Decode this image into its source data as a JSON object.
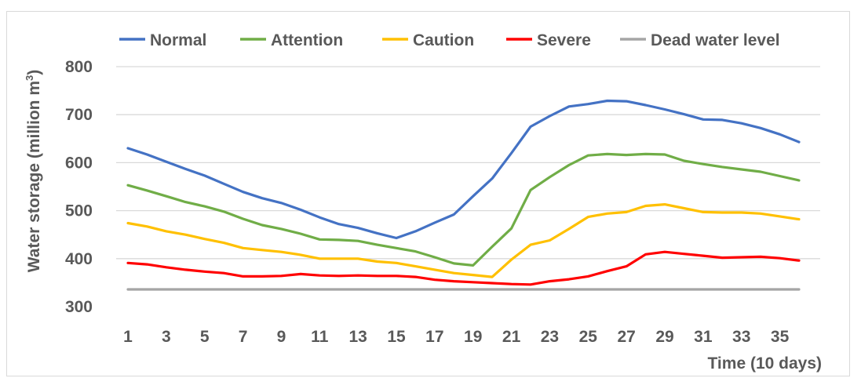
{
  "chart_data": {
    "type": "line",
    "title": "",
    "xlabel": "Time (10 days)",
    "ylabel": "Water storage (million m",
    "ylabel_sup": "3",
    "ylabel_close": ")",
    "xlim": [
      1,
      36
    ],
    "ylim": [
      300,
      800
    ],
    "y_ticks": [
      "300",
      "400",
      "500",
      "600",
      "700",
      "800"
    ],
    "x_ticks": [
      "1",
      "3",
      "5",
      "7",
      "9",
      "11",
      "13",
      "15",
      "17",
      "19",
      "21",
      "23",
      "25",
      "27",
      "29",
      "31",
      "33",
      "35"
    ],
    "grid": "horizontal",
    "legend_position": "top",
    "x": [
      1,
      2,
      3,
      4,
      5,
      6,
      7,
      8,
      9,
      10,
      11,
      12,
      13,
      14,
      15,
      16,
      17,
      18,
      19,
      20,
      21,
      22,
      23,
      24,
      25,
      26,
      27,
      28,
      29,
      30,
      31,
      32,
      33,
      34,
      35,
      36
    ],
    "series": [
      {
        "name": "Normal",
        "color": "#4472C4",
        "values": [
          630,
          617,
          602,
          587,
          573,
          556,
          539,
          526,
          516,
          502,
          486,
          472,
          464,
          453,
          443,
          457,
          475,
          492,
          530,
          567,
          620,
          675,
          697,
          717,
          722,
          729,
          728,
          720,
          711,
          701,
          690,
          689,
          682,
          672,
          659,
          643
        ]
      },
      {
        "name": "Attention",
        "color": "#70AD47",
        "values": [
          553,
          542,
          530,
          518,
          509,
          498,
          483,
          470,
          462,
          452,
          440,
          439,
          437,
          429,
          422,
          415,
          403,
          390,
          386,
          425,
          463,
          543,
          570,
          595,
          615,
          618,
          616,
          618,
          617,
          604,
          597,
          591,
          586,
          581,
          572,
          563
        ]
      },
      {
        "name": "Caution",
        "color": "#FFC000",
        "values": [
          474,
          467,
          457,
          450,
          441,
          433,
          422,
          418,
          414,
          408,
          400,
          400,
          400,
          394,
          391,
          384,
          377,
          370,
          366,
          362,
          398,
          429,
          438,
          462,
          487,
          494,
          497,
          510,
          513,
          505,
          497,
          496,
          496,
          494,
          488,
          482
        ]
      },
      {
        "name": "Severe",
        "color": "#FF0000",
        "values": [
          391,
          388,
          382,
          377,
          373,
          370,
          363,
          363,
          364,
          368,
          365,
          364,
          365,
          364,
          364,
          362,
          356,
          353,
          351,
          349,
          347,
          346,
          353,
          357,
          363,
          374,
          384,
          409,
          414,
          410,
          406,
          402,
          403,
          404,
          401,
          396
        ]
      },
      {
        "name": "Dead water level",
        "color": "#A5A5A5",
        "values": [
          336,
          336,
          336,
          336,
          336,
          336,
          336,
          336,
          336,
          336,
          336,
          336,
          336,
          336,
          336,
          336,
          336,
          336,
          336,
          336,
          336,
          336,
          336,
          336,
          336,
          336,
          336,
          336,
          336,
          336,
          336,
          336,
          336,
          336,
          336,
          336
        ]
      }
    ]
  }
}
